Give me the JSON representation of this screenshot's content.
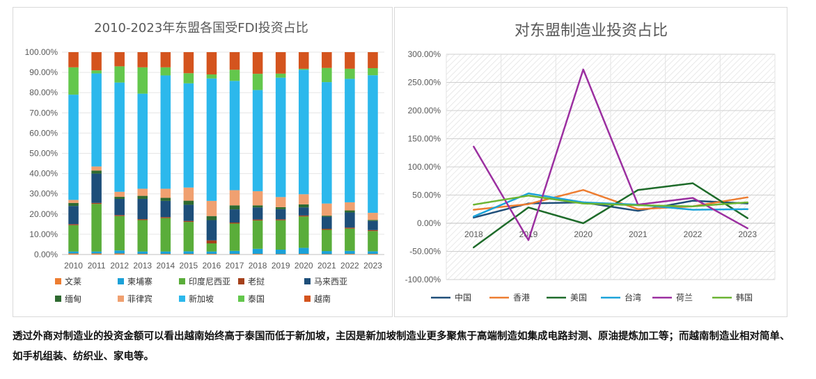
{
  "caption": "透过外商对制造业的投资金额可以看出越南始终高于泰国而低于新加坡，主因是新加坡制造业更多聚焦于高端制造如集成电路封测、原油提炼加工等；而越南制造业相对简单、如手机组装、纺织业、家电等。",
  "chart_data": [
    {
      "type": "bar",
      "stacked": true,
      "title": "2010-2023年东盟各国受FDI投资占比",
      "categories": [
        "2010",
        "2011",
        "2012",
        "2013",
        "2014",
        "2015",
        "2016",
        "2017",
        "2018",
        "2019",
        "2020",
        "2021",
        "2022",
        "2023"
      ],
      "yticks": [
        "0.00%",
        "10.00%",
        "20.00%",
        "30.00%",
        "40.00%",
        "50.00%",
        "60.00%",
        "70.00%",
        "80.00%",
        "90.00%",
        "100.00%"
      ],
      "ylim": [
        0,
        100
      ],
      "legend_position": "bottom",
      "series": [
        {
          "name": "文莱",
          "color": "#ed7d31",
          "values": [
            0.5,
            0.5,
            0.5,
            0.3,
            0.3,
            0.3,
            0.3,
            0.3,
            0.3,
            0.2,
            0.3,
            0.2,
            0.3,
            0.3
          ]
        },
        {
          "name": "柬埔寨",
          "color": "#1ba1d8",
          "values": [
            1,
            1,
            1.5,
            1.2,
            1.2,
            1.3,
            1.2,
            1.5,
            2.5,
            2.2,
            3,
            1.5,
            1.5,
            1.3
          ]
        },
        {
          "name": "印度尼西亚",
          "color": "#5aad3a",
          "values": [
            13,
            23.5,
            17,
            15.5,
            16.5,
            14.5,
            4,
            13.5,
            14,
            14.5,
            15.5,
            10.5,
            11,
            10
          ]
        },
        {
          "name": "老挝",
          "color": "#a5411b",
          "values": [
            0.5,
            0.5,
            0.5,
            0.5,
            0.5,
            0.5,
            1.5,
            0.5,
            0.5,
            0.5,
            0.5,
            0.5,
            0.5,
            0.5
          ]
        },
        {
          "name": "马来西亚",
          "color": "#1d4e79",
          "values": [
            9,
            14.5,
            8,
            10,
            8,
            8,
            10,
            6.5,
            6,
            5,
            4,
            6,
            7.5,
            4.5
          ]
        },
        {
          "name": "缅甸",
          "color": "#2e6a30",
          "values": [
            1.5,
            1.5,
            1,
            1.5,
            1.5,
            2,
            2,
            2,
            1,
            1,
            1.5,
            0.5,
            1,
            0.5
          ]
        },
        {
          "name": "菲律宾",
          "color": "#f0a070",
          "values": [
            1.5,
            2,
            2.5,
            3.5,
            4.5,
            6.5,
            7.5,
            7.5,
            7,
            5,
            5,
            6,
            4,
            3.5
          ]
        },
        {
          "name": "新加坡",
          "color": "#2cb8ec",
          "values": [
            52,
            46,
            54,
            47,
            56,
            51.5,
            60.5,
            54,
            50,
            59,
            61.5,
            60,
            61,
            68
          ]
        },
        {
          "name": "泰国",
          "color": "#63c74c",
          "values": [
            13.5,
            1.5,
            8,
            13,
            4,
            5,
            2,
            5.5,
            8,
            2,
            0.5,
            7,
            5,
            3.5
          ]
        },
        {
          "name": "越南",
          "color": "#d4541e",
          "values": [
            7.5,
            9,
            7,
            7.5,
            7.5,
            10.4,
            11,
            8.7,
            10.7,
            10.6,
            8.2,
            7.8,
            8.2,
            7.9
          ]
        }
      ]
    },
    {
      "type": "line",
      "title": "对东盟制造业投资占比",
      "categories": [
        "2018",
        "2019",
        "2020",
        "2021",
        "2022",
        "2023"
      ],
      "yticks": [
        "-100.00%",
        "-50.00%",
        "0.00%",
        "50.00%",
        "100.00%",
        "150.00%",
        "200.00%",
        "250.00%",
        "300.00%"
      ],
      "ylim": [
        -100,
        300
      ],
      "legend_position": "bottom",
      "series": [
        {
          "name": "中国",
          "color": "#1f4e79",
          "values": [
            10,
            35,
            37,
            22,
            40,
            35
          ]
        },
        {
          "name": "香港",
          "color": "#ed7d31",
          "values": [
            24,
            34,
            59,
            25,
            30,
            46
          ]
        },
        {
          "name": "美国",
          "color": "#1e6b2a",
          "values": [
            -43,
            28,
            0,
            59,
            71,
            9
          ]
        },
        {
          "name": "台湾",
          "color": "#1ba3d9",
          "values": [
            12,
            53,
            37,
            33,
            24,
            25
          ]
        },
        {
          "name": "荷兰",
          "color": "#9b2fa0",
          "values": [
            136,
            -30,
            273,
            33,
            45,
            -9
          ]
        },
        {
          "name": "韩国",
          "color": "#6ab432",
          "values": [
            33,
            49,
            35,
            32,
            30,
            37
          ]
        }
      ]
    }
  ]
}
